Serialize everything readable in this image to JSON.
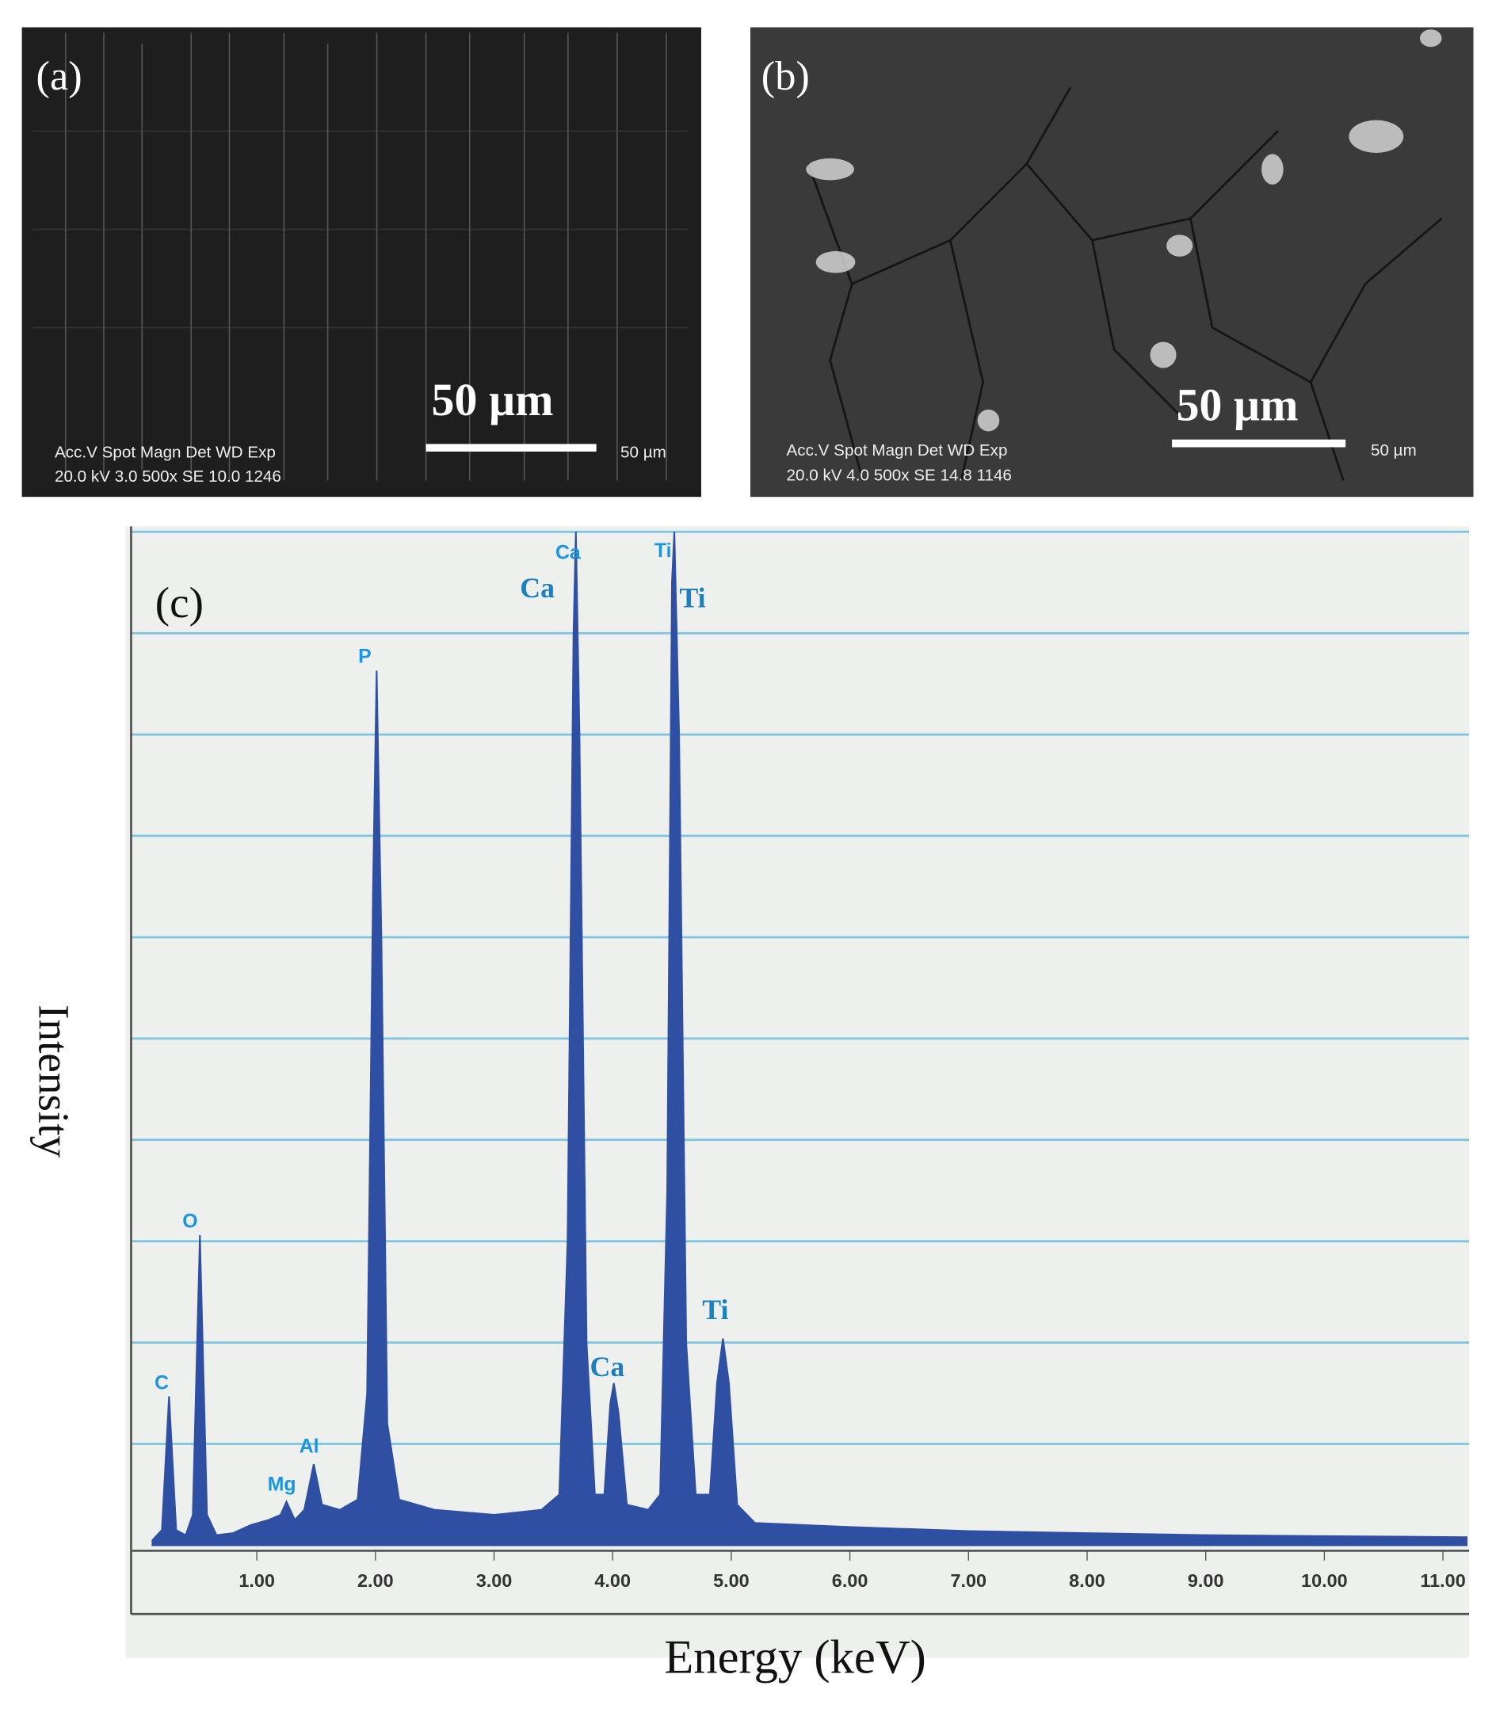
{
  "panels": [
    {
      "label": "(a)",
      "scale_text": "50 µm",
      "info_header": "Acc.V  Spot Magn    Det  WD  Exp",
      "info_values": "20.0 kV 3.0  500x    SE   10.0  1246",
      "scale_small": "50 µm"
    },
    {
      "label": "(b)",
      "scale_text": "50 µm",
      "info_header": "Acc.V  Spot Magn    Det  WD  Exp",
      "info_values": "20.0 kV 4.0  500x    SE   14.8  1146",
      "scale_small": "50 µm"
    }
  ],
  "chart_data": {
    "type": "area",
    "label": "(c)",
    "x_label": "Energy (keV)",
    "y_label": "Intensity",
    "color": "#2f4fa3",
    "xlim": [
      -0.06,
      11.22
    ],
    "ylim": [
      0,
      10
    ],
    "xticks": [
      {
        "value": 1,
        "label": "1.00"
      },
      {
        "value": 2,
        "label": "2.00"
      },
      {
        "value": 3,
        "label": "3.00"
      },
      {
        "value": 4,
        "label": "4.00"
      },
      {
        "value": 5,
        "label": "5.00"
      },
      {
        "value": 6,
        "label": "6.00"
      },
      {
        "value": 7,
        "label": "7.00"
      },
      {
        "value": 8,
        "label": "8.00"
      },
      {
        "value": 9,
        "label": "9.00"
      },
      {
        "value": 10,
        "label": "10.00"
      },
      {
        "value": 11,
        "label": "11.00"
      }
    ],
    "yticks": [
      1,
      2,
      3,
      4,
      5,
      6,
      7,
      8,
      9,
      10
    ],
    "grid": true,
    "x": [
      0.12,
      0.2,
      0.26,
      0.32,
      0.4,
      0.46,
      0.52,
      0.58,
      0.66,
      0.8,
      0.95,
      1.1,
      1.2,
      1.25,
      1.32,
      1.4,
      1.48,
      1.55,
      1.7,
      1.85,
      1.93,
      1.98,
      2.01,
      2.05,
      2.1,
      2.2,
      2.5,
      3.0,
      3.4,
      3.55,
      3.62,
      3.67,
      3.69,
      3.72,
      3.78,
      3.85,
      3.93,
      3.98,
      4.01,
      4.05,
      4.12,
      4.3,
      4.4,
      4.46,
      4.5,
      4.52,
      4.56,
      4.62,
      4.7,
      4.82,
      4.88,
      4.93,
      4.98,
      5.05,
      5.2,
      6,
      7,
      8,
      9,
      10,
      11.2
    ],
    "values": [
      0.05,
      0.15,
      1.47,
      0.15,
      0.1,
      0.3,
      3.06,
      0.3,
      0.1,
      0.12,
      0.2,
      0.25,
      0.3,
      0.43,
      0.25,
      0.35,
      0.8,
      0.4,
      0.35,
      0.45,
      1.5,
      6.5,
      8.63,
      6,
      1.2,
      0.45,
      0.35,
      0.3,
      0.35,
      0.5,
      3,
      9,
      10,
      8,
      2,
      0.5,
      0.5,
      1.4,
      1.6,
      1.3,
      0.4,
      0.35,
      0.5,
      3.5,
      9.5,
      10,
      8,
      2,
      0.5,
      0.5,
      1.6,
      2.04,
      1.6,
      0.4,
      0.22,
      0.18,
      0.14,
      0.12,
      0.1,
      0.09,
      0.08
    ],
    "annotations": [
      "C",
      "O",
      "Mg",
      "Al",
      "P",
      "Ca",
      "Ca",
      "Ti",
      "Ti",
      "Ca",
      "Ti"
    ]
  }
}
